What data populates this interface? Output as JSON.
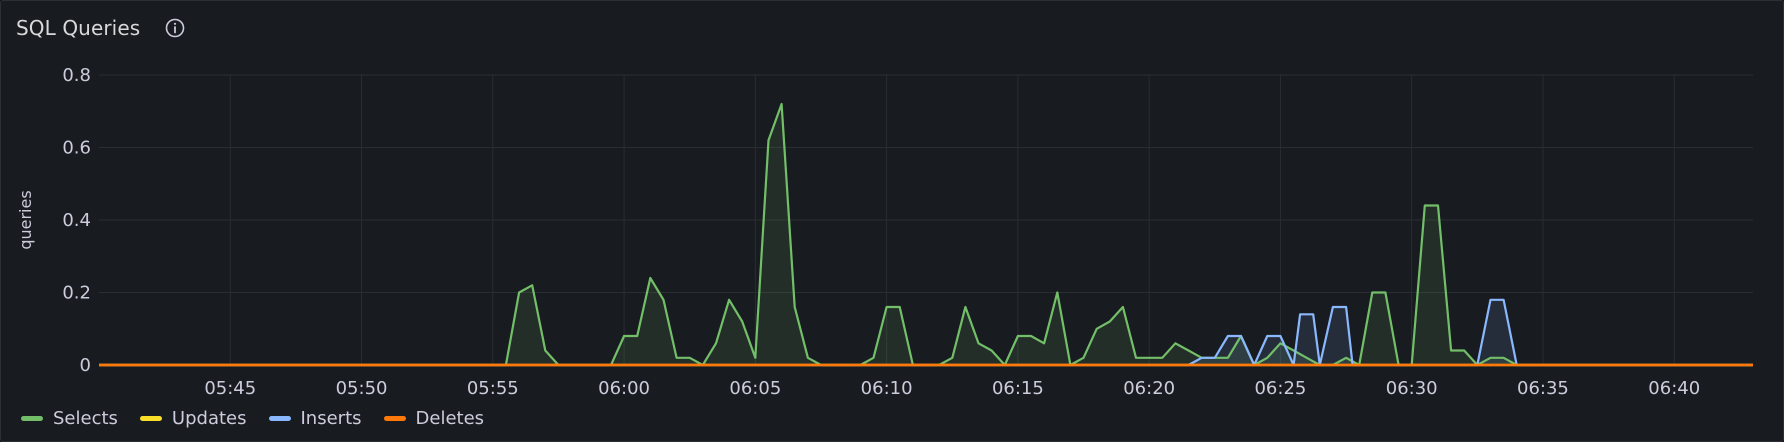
{
  "panel": {
    "title": "SQL Queries",
    "info_icon": "info-circle-icon"
  },
  "chart_data": {
    "type": "line",
    "title": "SQL Queries",
    "xlabel": "",
    "ylabel": "queries",
    "ylim": [
      0,
      0.8
    ],
    "yticks": [
      0,
      0.2,
      0.4,
      0.6,
      0.8
    ],
    "ytick_labels": [
      "0",
      "0.2",
      "0.4",
      "0.6",
      "0.8"
    ],
    "xlim": [
      "05:40",
      "06:43"
    ],
    "xticks": [
      "05:45",
      "05:50",
      "05:55",
      "06:00",
      "06:05",
      "06:10",
      "06:15",
      "06:20",
      "06:25",
      "06:30",
      "06:35",
      "06:40"
    ],
    "grid": true,
    "legend_position": "bottom-left",
    "fill": "area",
    "series": [
      {
        "name": "Selects",
        "color": "#73bf69",
        "points": [
          [
            "05:40",
            0
          ],
          [
            "05:55.5",
            0
          ],
          [
            "05:56",
            0.2
          ],
          [
            "05:56.5",
            0.22
          ],
          [
            "05:57",
            0.04
          ],
          [
            "05:57.5",
            0
          ],
          [
            "05:59.5",
            0
          ],
          [
            "06:00",
            0.08
          ],
          [
            "06:00.5",
            0.08
          ],
          [
            "06:01",
            0.24
          ],
          [
            "06:01.5",
            0.18
          ],
          [
            "06:02",
            0.02
          ],
          [
            "06:02.5",
            0.02
          ],
          [
            "06:03",
            0
          ],
          [
            "06:03.5",
            0.06
          ],
          [
            "06:04",
            0.18
          ],
          [
            "06:04.5",
            0.12
          ],
          [
            "06:05",
            0.02
          ],
          [
            "06:05.5",
            0.62
          ],
          [
            "06:06",
            0.72
          ],
          [
            "06:06.5",
            0.16
          ],
          [
            "06:07",
            0.02
          ],
          [
            "06:07.5",
            0
          ],
          [
            "06:09",
            0
          ],
          [
            "06:09.5",
            0.02
          ],
          [
            "06:10",
            0.16
          ],
          [
            "06:10.5",
            0.16
          ],
          [
            "06:11",
            0
          ],
          [
            "06:12",
            0
          ],
          [
            "06:12.5",
            0.02
          ],
          [
            "06:13",
            0.16
          ],
          [
            "06:13.5",
            0.06
          ],
          [
            "06:14",
            0.04
          ],
          [
            "06:14.5",
            0
          ],
          [
            "06:15",
            0.08
          ],
          [
            "06:15.5",
            0.08
          ],
          [
            "06:16",
            0.06
          ],
          [
            "06:16.5",
            0.2
          ],
          [
            "06:17",
            0
          ],
          [
            "06:17.5",
            0.02
          ],
          [
            "06:18",
            0.1
          ],
          [
            "06:18.5",
            0.12
          ],
          [
            "06:19",
            0.16
          ],
          [
            "06:19.5",
            0.02
          ],
          [
            "06:20",
            0.02
          ],
          [
            "06:20.5",
            0.02
          ],
          [
            "06:21",
            0.06
          ],
          [
            "06:21.5",
            0.04
          ],
          [
            "06:22",
            0.02
          ],
          [
            "06:22.5",
            0.02
          ],
          [
            "06:23",
            0.02
          ],
          [
            "06:23.5",
            0.08
          ],
          [
            "06:24",
            0
          ],
          [
            "06:24.5",
            0.02
          ],
          [
            "06:25",
            0.06
          ],
          [
            "06:25.5",
            0.04
          ],
          [
            "06:26",
            0.02
          ],
          [
            "06:26.5",
            0
          ],
          [
            "06:27",
            0
          ],
          [
            "06:27.5",
            0.02
          ],
          [
            "06:28",
            0
          ],
          [
            "06:28.5",
            0.2
          ],
          [
            "06:29",
            0.2
          ],
          [
            "06:29.5",
            0
          ],
          [
            "06:30",
            0
          ],
          [
            "06:30.5",
            0.44
          ],
          [
            "06:31",
            0.44
          ],
          [
            "06:31.5",
            0.04
          ],
          [
            "06:32",
            0.04
          ],
          [
            "06:32.5",
            0
          ],
          [
            "06:33",
            0.02
          ],
          [
            "06:33.5",
            0.02
          ],
          [
            "06:34",
            0
          ],
          [
            "06:43",
            0
          ]
        ]
      },
      {
        "name": "Updates",
        "color": "#fade2a",
        "points": [
          [
            "05:40",
            0
          ],
          [
            "06:43",
            0
          ]
        ]
      },
      {
        "name": "Inserts",
        "color": "#8ab8ff",
        "points": [
          [
            "05:40",
            0
          ],
          [
            "06:21.5",
            0
          ],
          [
            "06:22",
            0.02
          ],
          [
            "06:22.5",
            0.02
          ],
          [
            "06:23",
            0.08
          ],
          [
            "06:23.5",
            0.08
          ],
          [
            "06:24",
            0
          ],
          [
            "06:24.5",
            0.08
          ],
          [
            "06:25",
            0.08
          ],
          [
            "06:25.5",
            0
          ],
          [
            "06:25.75",
            0.14
          ],
          [
            "06:26.25",
            0.14
          ],
          [
            "06:26.5",
            0
          ],
          [
            "06:27",
            0.16
          ],
          [
            "06:27.5",
            0.16
          ],
          [
            "06:27.75",
            0
          ],
          [
            "06:32.5",
            0
          ],
          [
            "06:33",
            0.18
          ],
          [
            "06:33.5",
            0.18
          ],
          [
            "06:34",
            0
          ],
          [
            "06:43",
            0
          ]
        ]
      },
      {
        "name": "Deletes",
        "color": "#ff780a",
        "points": [
          [
            "05:40",
            0
          ],
          [
            "06:43",
            0
          ]
        ]
      }
    ]
  }
}
